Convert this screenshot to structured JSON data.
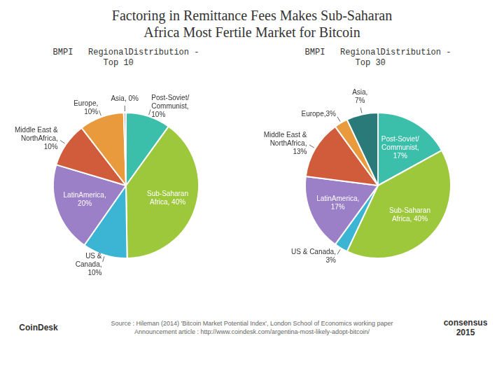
{
  "title": "Factoring in Remittance Fees Makes Sub-Saharan\nAfrica Most Fertile Market for Bitcoin",
  "annotations": [
    "CoinDesk",
    "Source : Hileman (2014) 'Bitcoin Market Potential Index', London School of Economics working paper\nAnnouncement article : http://www.coindesk.com/argentina-most-likely-adopt-bitcoin/",
    "consensus\n2015"
  ],
  "chart_data": [
    {
      "type": "pie",
      "subtitle": "BMPI   RegionalDistribution -\n          Top 10",
      "values": [
        10,
        40,
        10,
        20,
        10,
        10,
        0.5
      ],
      "value_labels": [
        "Post-Soviet/\nCommunist,\n10%",
        "Sub-Saharan\nAfrica, 40%",
        "US &\nCanada,\n10%",
        "LatinAmerica,\n20%",
        "Middle East &\nNorthAfrica,\n10%",
        "Europe,\n10%",
        "Asia, 0%"
      ],
      "colors": [
        "#3cbfaa",
        "#9dc83c",
        "#3cb5d4",
        "#9b7fc7",
        "#d05c3c",
        "#e89a3c",
        "#b0b0b0"
      ],
      "data_labels": true,
      "legend": false
    },
    {
      "type": "pie",
      "subtitle": "BMPI   RegionalDistribution -\n          Top 30",
      "values": [
        17,
        40,
        3,
        17,
        13,
        3,
        7
      ],
      "value_labels": [
        "Post-Soviet/\nCommunist,\n17%",
        "Sub-Saharan\nAfrica, 40%",
        "US & Canada,\n3%",
        "LatinAmerica,\n17%",
        "Middle East &\nNorthAfrica,\n13%",
        "Europe,3%",
        "Asia,\n7%"
      ],
      "colors": [
        "#3cbfaa",
        "#9dc83c",
        "#3cb5d4",
        "#9b7fc7",
        "#d05c3c",
        "#e89a3c",
        "#2a7a7a"
      ],
      "data_labels": true,
      "legend": false
    }
  ]
}
